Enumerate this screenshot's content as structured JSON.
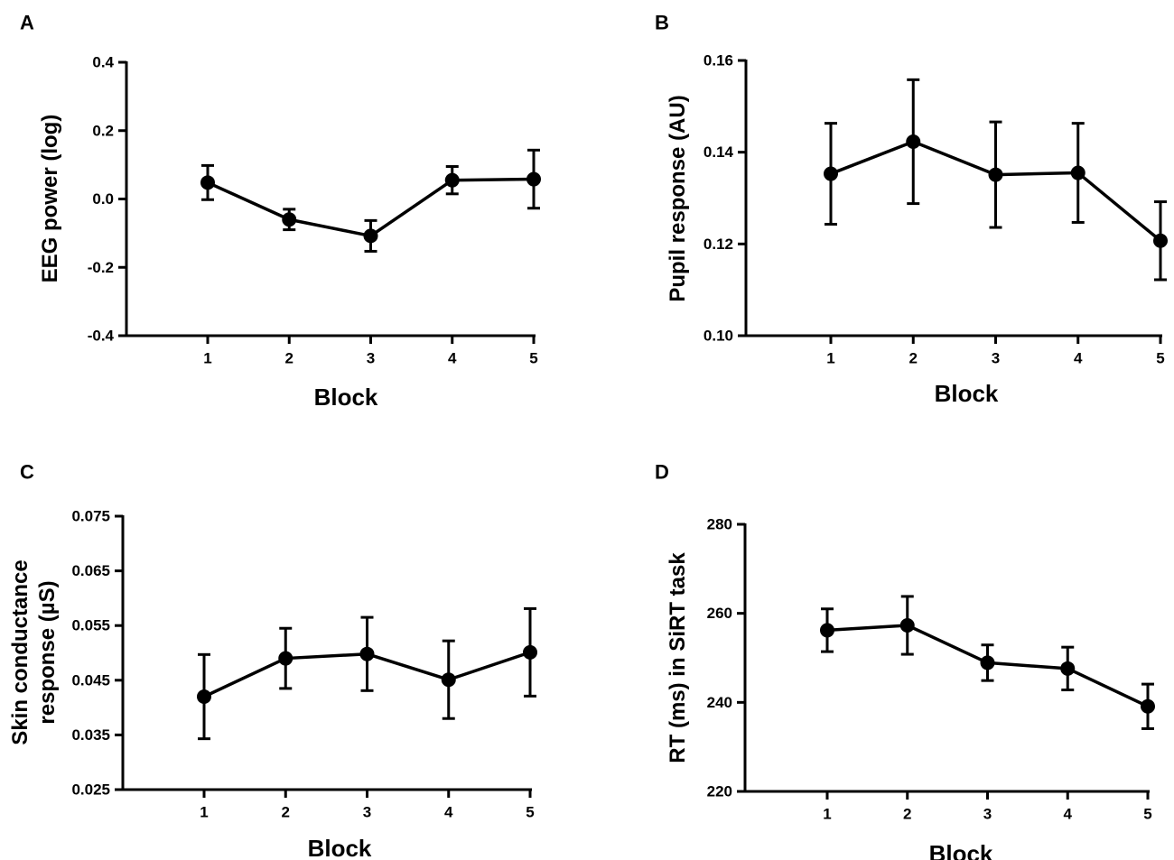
{
  "figure": {
    "background": "#ffffff",
    "ink": "#000000"
  },
  "chart_data": [
    {
      "panel": "A",
      "type": "line",
      "xlabel": "Block",
      "ylabel": [
        "EEG power (log)"
      ],
      "categories": [
        "1",
        "2",
        "3",
        "4",
        "5"
      ],
      "values": [
        0.048,
        -0.06,
        -0.108,
        0.055,
        0.058
      ],
      "errors": [
        0.05,
        0.03,
        0.045,
        0.04,
        0.085
      ],
      "ylim": [
        -0.4,
        0.4
      ],
      "yticks": [
        -0.4,
        -0.2,
        0.0,
        0.2,
        0.4
      ],
      "ytick_labels": [
        "-0.4",
        "-0.2",
        "0.0",
        "0.2",
        "0.4"
      ],
      "grid": false
    },
    {
      "panel": "B",
      "type": "line",
      "xlabel": "Block",
      "ylabel": [
        "Pupil response (AU)"
      ],
      "categories": [
        "1",
        "2",
        "3",
        "4",
        "5"
      ],
      "values": [
        0.1353,
        0.1423,
        0.1351,
        0.1355,
        0.1207
      ],
      "errors": [
        0.011,
        0.0135,
        0.0115,
        0.0108,
        0.0085
      ],
      "ylim": [
        0.1,
        0.16
      ],
      "yticks": [
        0.1,
        0.12,
        0.14,
        0.16
      ],
      "ytick_labels": [
        "0.10",
        "0.12",
        "0.14",
        "0.16"
      ],
      "grid": false
    },
    {
      "panel": "C",
      "type": "line",
      "xlabel": "Block",
      "ylabel": [
        "Skin conductance",
        "response (µS)"
      ],
      "categories": [
        "1",
        "2",
        "3",
        "4",
        "5"
      ],
      "values": [
        0.042,
        0.049,
        0.0498,
        0.0451,
        0.0501
      ],
      "errors": [
        0.0077,
        0.0055,
        0.0067,
        0.0071,
        0.008
      ],
      "ylim": [
        0.025,
        0.075
      ],
      "yticks": [
        0.025,
        0.035,
        0.045,
        0.055,
        0.065,
        0.075
      ],
      "ytick_labels": [
        "0.025",
        "0.035",
        "0.045",
        "0.055",
        "0.065",
        "0.075"
      ],
      "grid": false
    },
    {
      "panel": "D",
      "type": "line",
      "xlabel": "Block",
      "ylabel": [
        "RT (ms) in SiRT task"
      ],
      "categories": [
        "1",
        "2",
        "3",
        "4",
        "5"
      ],
      "values": [
        256.2,
        257.3,
        248.9,
        247.6,
        239.1
      ],
      "errors": [
        4.8,
        6.5,
        4.0,
        4.8,
        5.0
      ],
      "ylim": [
        220,
        280
      ],
      "yticks": [
        220,
        240,
        260,
        280
      ],
      "ytick_labels": [
        "220",
        "240",
        "260",
        "280"
      ],
      "grid": false
    }
  ]
}
